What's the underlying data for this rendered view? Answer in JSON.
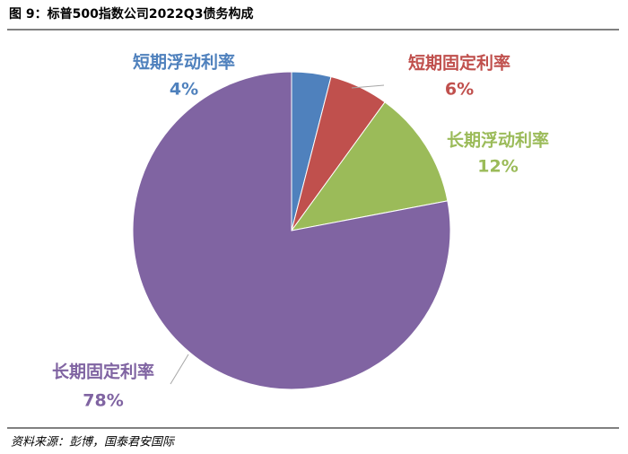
{
  "chart_data": {
    "type": "pie",
    "title": "图 9：标普500指数公司2022Q3债务构成",
    "source": "资料来源：彭博，国泰君安国际",
    "categories": [
      "短期浮动利率",
      "短期固定利率",
      "长期浮动利率",
      "长期固定利率"
    ],
    "values": [
      4,
      6,
      12,
      78
    ],
    "value_labels": [
      "4%",
      "6%",
      "12%",
      "78%"
    ],
    "colors": [
      "#4f81bd",
      "#c0504d",
      "#9bbb59",
      "#8064a2"
    ]
  }
}
